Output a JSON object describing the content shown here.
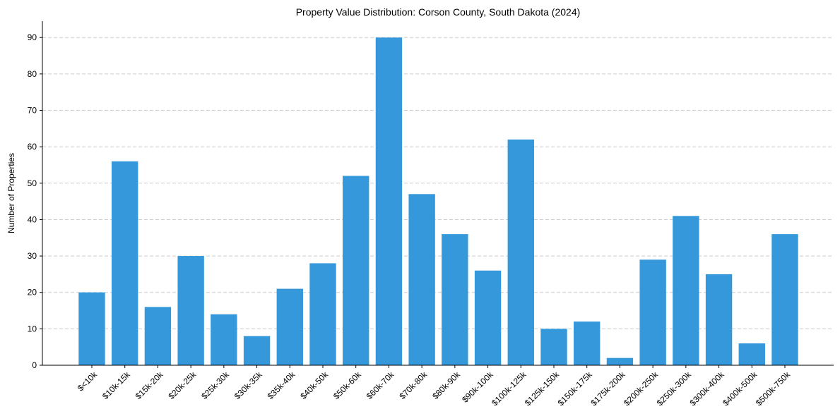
{
  "chart_data": {
    "type": "bar",
    "title": "Property Value Distribution: Corson County, South Dakota (2024)",
    "xlabel": "",
    "ylabel": "Number of Properties",
    "categories": [
      "$<10k",
      "$10k-15k",
      "$15k-20k",
      "$20k-25k",
      "$25k-30k",
      "$30k-35k",
      "$35k-40k",
      "$40k-50k",
      "$50k-60k",
      "$60k-70k",
      "$70k-80k",
      "$80k-90k",
      "$90k-100k",
      "$100k-125k",
      "$125k-150k",
      "$150k-175k",
      "$175k-200k",
      "$200k-250k",
      "$250k-300k",
      "$300k-400k",
      "$400k-500k",
      "$500k-750k"
    ],
    "values": [
      20,
      56,
      16,
      30,
      14,
      8,
      21,
      28,
      52,
      90,
      47,
      36,
      26,
      62,
      10,
      12,
      2,
      29,
      41,
      25,
      6,
      36
    ],
    "ylim": [
      0,
      94.5
    ],
    "yticks": [
      0,
      10,
      20,
      30,
      40,
      50,
      60,
      70,
      80,
      90
    ],
    "grid": "y",
    "bar_color": "#3498db"
  }
}
